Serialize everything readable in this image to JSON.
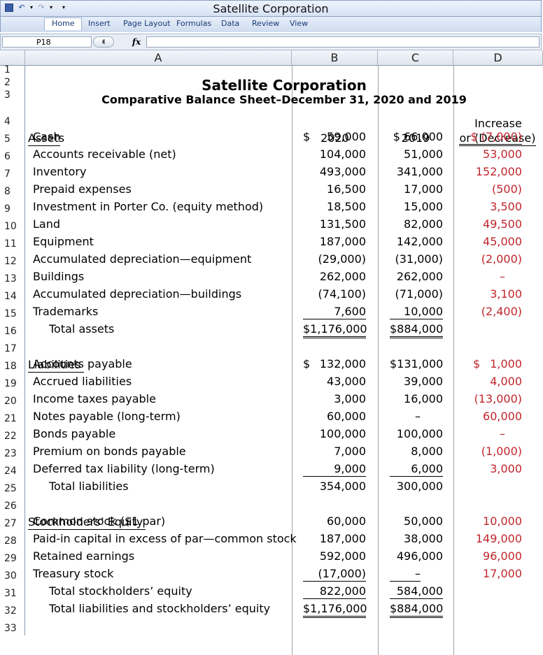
{
  "window": {
    "title": "Satellite Corporation"
  },
  "ribbon": {
    "tabs": [
      "Home",
      "Insert",
      "Page Layout",
      "Formulas",
      "Data",
      "Review",
      "View"
    ]
  },
  "formula_bar": {
    "cell_ref": "P18",
    "fx": "fx",
    "value": ""
  },
  "columns": [
    "A",
    "B",
    "C",
    "D"
  ],
  "sheet": {
    "company": "Satellite Corporation",
    "subtitle": "Comparative Balance Sheet–December 31, 2020 and 2019",
    "col_2020": "2020",
    "col_2019": "2019",
    "col_change_1": "Increase",
    "col_change_2": "or (Decrease)",
    "assets_header": "Assets",
    "liabilities_header": "Liabilities",
    "equity_header": "Stockholders’ Equity",
    "rows": [
      {
        "row": "5",
        "label": "Cash",
        "y2020": "59,000",
        "y2019": "$ 66,000",
        "chg": "$ (7,000)"
      },
      {
        "row": "6",
        "label": "Accounts receivable (net)",
        "y2020": "104,000",
        "y2019": "51,000",
        "chg": "53,000"
      },
      {
        "row": "7",
        "label": "Inventory",
        "y2020": "493,000",
        "y2019": "341,000",
        "chg": "152,000"
      },
      {
        "row": "8",
        "label": "Prepaid expenses",
        "y2020": "16,500",
        "y2019": "17,000",
        "chg": "(500)"
      },
      {
        "row": "9",
        "label": "Investment in Porter Co. (equity method)",
        "y2020": "18,500",
        "y2019": "15,000",
        "chg": "3,500"
      },
      {
        "row": "10",
        "label": "Land",
        "y2020": "131,500",
        "y2019": "82,000",
        "chg": "49,500"
      },
      {
        "row": "11",
        "label": "Equipment",
        "y2020": "187,000",
        "y2019": "142,000",
        "chg": "45,000"
      },
      {
        "row": "12",
        "label": "Accumulated depreciation—equipment",
        "y2020": "(29,000)",
        "y2019": "(31,000)",
        "chg": "(2,000)"
      },
      {
        "row": "13",
        "label": "Buildings",
        "y2020": "262,000",
        "y2019": "262,000",
        "chg": "–"
      },
      {
        "row": "14",
        "label": "Accumulated depreciation—buildings",
        "y2020": "(74,100)",
        "y2019": "(71,000)",
        "chg": "3,100"
      },
      {
        "row": "15",
        "label": "Trademarks",
        "y2020": "7,600",
        "y2019": "10,000",
        "chg": "(2,400)"
      },
      {
        "row": "16",
        "label": "Total assets",
        "y2020": "$1,176,000",
        "y2019": "$884,000",
        "chg": ""
      },
      {
        "row": "18",
        "label": "Accounts payable",
        "y2020": "132,000",
        "y2019": "$131,000",
        "chg": "1,000"
      },
      {
        "row": "19",
        "label": "Accrued liabilities",
        "y2020": "43,000",
        "y2019": "39,000",
        "chg": "4,000"
      },
      {
        "row": "20",
        "label": "Income taxes payable",
        "y2020": "3,000",
        "y2019": "16,000",
        "chg": "(13,000)"
      },
      {
        "row": "21",
        "label": "Notes payable (long-term)",
        "y2020": "60,000",
        "y2019": "–",
        "chg": "60,000"
      },
      {
        "row": "22",
        "label": "Bonds payable",
        "y2020": "100,000",
        "y2019": "100,000",
        "chg": "–"
      },
      {
        "row": "23",
        "label": "Premium on bonds payable",
        "y2020": "7,000",
        "y2019": "8,000",
        "chg": "(1,000)"
      },
      {
        "row": "24",
        "label": "Deferred tax liability (long-term)",
        "y2020": "9,000",
        "y2019": "6,000",
        "chg": "3,000"
      },
      {
        "row": "25",
        "label": "Total liabilities",
        "y2020": "354,000",
        "y2019": "300,000",
        "chg": ""
      },
      {
        "row": "27",
        "label": "Common stock ($1 par)",
        "y2020": "60,000",
        "y2019": "50,000",
        "chg": "10,000"
      },
      {
        "row": "28",
        "label": "Paid-in capital in excess of par—common stock",
        "y2020": "187,000",
        "y2019": "38,000",
        "chg": "149,000"
      },
      {
        "row": "29",
        "label": "Retained earnings",
        "y2020": "592,000",
        "y2019": "496,000",
        "chg": "96,000"
      },
      {
        "row": "30",
        "label": "Treasury stock",
        "y2020": "(17,000)",
        "y2019": "–",
        "chg": "17,000"
      },
      {
        "row": "31",
        "label": "Total stockholders’ equity",
        "y2020": "822,000",
        "y2019": "584,000",
        "chg": ""
      },
      {
        "row": "32",
        "label": "Total liabilities and stockholders’ equity",
        "y2020": "$1,176,000",
        "y2019": "$884,000",
        "chg": ""
      }
    ],
    "dollar_sign": "$",
    "row_numbers": [
      "1",
      "2",
      "3",
      "4",
      "5",
      "6",
      "7",
      "8",
      "9",
      "10",
      "11",
      "12",
      "13",
      "14",
      "15",
      "16",
      "17",
      "18",
      "19",
      "20",
      "21",
      "22",
      "23",
      "24",
      "25",
      "26",
      "27",
      "28",
      "29",
      "30",
      "31",
      "32",
      "33"
    ]
  },
  "colors": {
    "change": "#c0262c",
    "ribbon_text": "#1b3a78"
  }
}
